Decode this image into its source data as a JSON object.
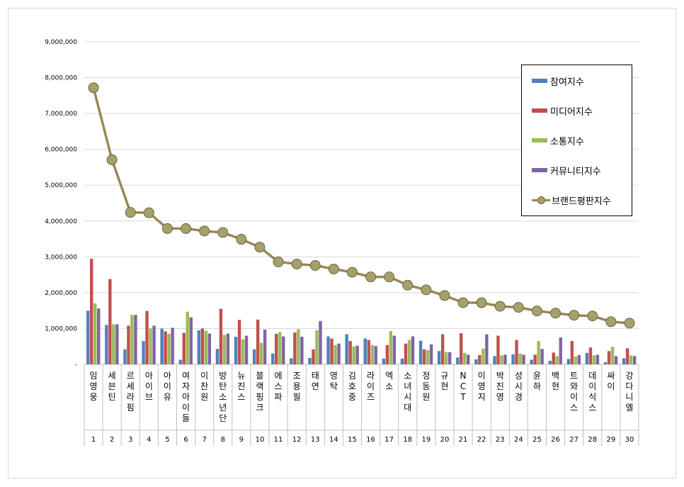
{
  "chart_data": {
    "type": "bar+line",
    "title": "",
    "xlabel": "",
    "ylabel": "",
    "ylim": [
      0,
      9000000
    ],
    "yticks": [
      "-",
      "1,000,000",
      "2,000,000",
      "3,000,000",
      "4,000,000",
      "5,000,000",
      "6,000,000",
      "7,000,000",
      "8,000,000",
      "9,000,000"
    ],
    "grid": true,
    "legend_position": "top-right",
    "categories": [
      "임영웅",
      "세븐틴",
      "르세라핌",
      "아이브",
      "아이유",
      "여자아이들",
      "이찬원",
      "방탄소년단",
      "뉴진스",
      "블랙핑크",
      "에스파",
      "조용필",
      "태연",
      "영탁",
      "김호중",
      "라이즈",
      "엑소",
      "소녀시대",
      "정동원",
      "규현",
      "NCT",
      "이영지",
      "박진영",
      "성시경",
      "윤하",
      "백현",
      "트와이스",
      "데이식스",
      "싸이",
      "강다니엘"
    ],
    "ranks": [
      "1",
      "2",
      "3",
      "4",
      "5",
      "6",
      "7",
      "8",
      "9",
      "10",
      "11",
      "12",
      "13",
      "14",
      "15",
      "16",
      "17",
      "18",
      "19",
      "20",
      "21",
      "22",
      "23",
      "24",
      "25",
      "26",
      "27",
      "28",
      "29",
      "30"
    ],
    "series": [
      {
        "name": "참여지수",
        "kind": "bar",
        "color": "#4f81bd",
        "values": [
          1500000,
          1100000,
          420000,
          650000,
          1000000,
          130000,
          950000,
          430000,
          770000,
          420000,
          300000,
          170000,
          180000,
          780000,
          840000,
          720000,
          160000,
          160000,
          660000,
          370000,
          190000,
          140000,
          230000,
          280000,
          130000,
          100000,
          150000,
          320000,
          60000,
          170000
        ]
      },
      {
        "name": "미디어지수",
        "kind": "bar",
        "color": "#c0504d",
        "values": [
          2950000,
          2380000,
          1080000,
          1490000,
          920000,
          880000,
          1000000,
          1550000,
          1240000,
          1250000,
          850000,
          890000,
          420000,
          720000,
          650000,
          680000,
          540000,
          580000,
          420000,
          840000,
          870000,
          260000,
          800000,
          680000,
          270000,
          330000,
          650000,
          470000,
          370000,
          450000
        ]
      },
      {
        "name": "소통지수",
        "kind": "bar",
        "color": "#9bbb59",
        "values": [
          1700000,
          1120000,
          1380000,
          1000000,
          850000,
          1470000,
          940000,
          820000,
          700000,
          600000,
          900000,
          980000,
          950000,
          540000,
          500000,
          540000,
          930000,
          680000,
          400000,
          340000,
          320000,
          440000,
          250000,
          300000,
          650000,
          230000,
          220000,
          250000,
          490000,
          250000
        ]
      },
      {
        "name": "커뮤니티지수",
        "kind": "bar",
        "color": "#8064a2",
        "values": [
          1560000,
          1120000,
          1380000,
          1080000,
          1020000,
          1310000,
          860000,
          860000,
          800000,
          970000,
          780000,
          770000,
          1210000,
          580000,
          520000,
          510000,
          800000,
          780000,
          560000,
          340000,
          270000,
          840000,
          270000,
          270000,
          430000,
          750000,
          260000,
          270000,
          230000,
          230000
        ]
      },
      {
        "name": "브랜드평판지수",
        "kind": "line",
        "color": "#948a54",
        "values": [
          7720000,
          5710000,
          4240000,
          4230000,
          3790000,
          3790000,
          3720000,
          3680000,
          3490000,
          3270000,
          2860000,
          2800000,
          2760000,
          2660000,
          2570000,
          2440000,
          2440000,
          2210000,
          2080000,
          1920000,
          1720000,
          1720000,
          1620000,
          1590000,
          1490000,
          1430000,
          1370000,
          1350000,
          1190000,
          1150000
        ]
      }
    ]
  }
}
